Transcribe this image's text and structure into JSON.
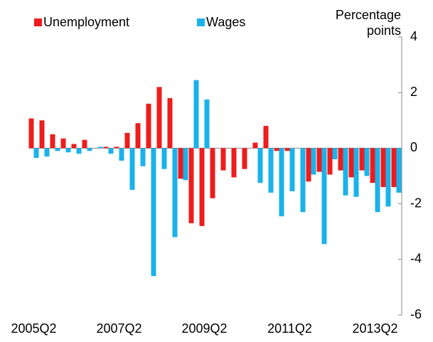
{
  "chart_data": {
    "type": "bar",
    "ylabel": "Percentage points",
    "categories": [
      "2005Q2",
      null,
      null,
      null,
      null,
      null,
      null,
      null,
      "2007Q2",
      null,
      null,
      null,
      null,
      null,
      null,
      null,
      "2009Q2",
      null,
      null,
      null,
      null,
      null,
      null,
      null,
      "2011Q2",
      null,
      null,
      null,
      null,
      null,
      null,
      null,
      "2013Q2",
      null,
      null
    ],
    "series": [
      {
        "name": "Unemployment",
        "color": "#ee1c1c",
        "values": [
          1.07,
          1.0,
          0.5,
          0.35,
          0.15,
          0.3,
          0.0,
          0.05,
          0.05,
          0.55,
          0.9,
          1.6,
          2.2,
          1.8,
          -1.1,
          -2.7,
          -2.8,
          -1.8,
          -0.8,
          -1.05,
          -0.75,
          0.2,
          0.8,
          -0.1,
          -0.1,
          0.0,
          -1.2,
          -0.85,
          -0.95,
          -0.8,
          -1.05,
          -0.8,
          -1.25,
          -1.4,
          -1.4
        ]
      },
      {
        "name": "Wages",
        "color": "#1ab2ea",
        "values": [
          -0.35,
          -0.3,
          -0.1,
          -0.15,
          -0.2,
          -0.1,
          0.05,
          -0.2,
          -0.45,
          -1.5,
          -0.65,
          -4.6,
          -0.75,
          -3.2,
          -1.15,
          2.45,
          1.75,
          0.0,
          0.0,
          0.0,
          0.0,
          -1.25,
          -1.6,
          -2.45,
          -1.55,
          -2.3,
          -0.95,
          -3.45,
          -0.4,
          -1.7,
          -1.75,
          -1.0,
          -2.3,
          -2.1,
          -1.6
        ]
      }
    ],
    "ylim": [
      -6,
      4
    ],
    "yticks": [
      -6,
      -4,
      -2,
      0,
      2,
      4
    ],
    "legend": "top-left"
  }
}
